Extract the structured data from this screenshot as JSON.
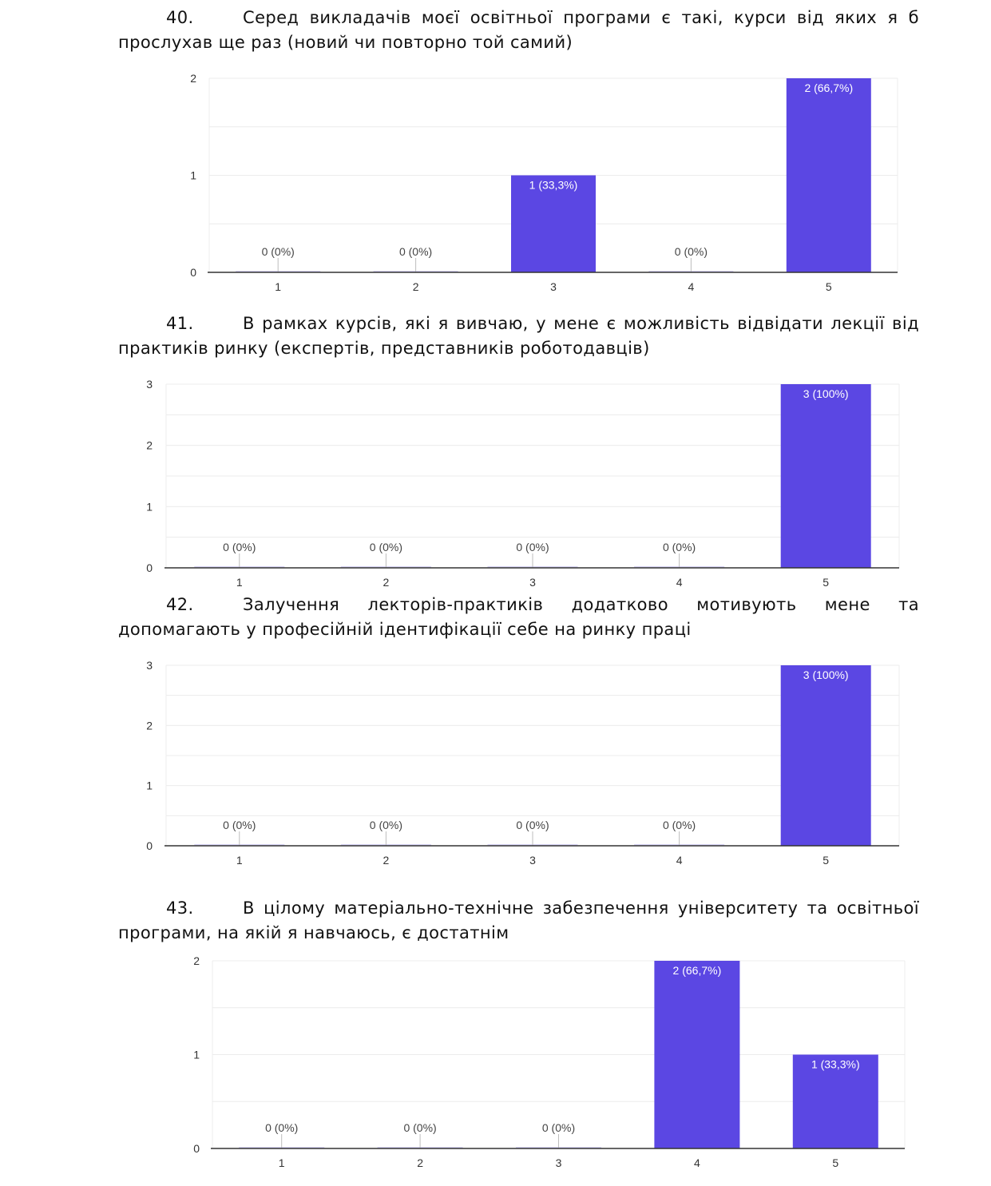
{
  "questions": [
    {
      "number": "40.",
      "text": "Серед викладачів моєї освітньої програми є такі, курси від яких я б прослухав ще раз (новий чи повторно той самий)"
    },
    {
      "number": "41.",
      "text": "В рамках курсів, які я вивчаю, у мене є можливість відвідати лекції від практиків ринку (експертів, представників роботодавців)"
    },
    {
      "number": "42.",
      "text": "Залучення лекторів-практиків додатково мотивують мене та допомагають у професійній ідентифікації себе на ринку праці"
    },
    {
      "number": "43.",
      "text": "В цілому матеріально-технічне забезпечення університету та освітньої програми, на якій я навчаюсь, є достатнім"
    }
  ],
  "colors": {
    "bar": "#5b47e3",
    "grid": "#ececec",
    "axis": "#333333"
  },
  "chart_data": [
    {
      "type": "bar",
      "categories": [
        "1",
        "2",
        "3",
        "4",
        "5"
      ],
      "values": [
        0,
        0,
        1,
        0,
        2
      ],
      "labels": [
        "0 (0%)",
        "0 (0%)",
        "1 (33,3%)",
        "0 (0%)",
        "2 (66,7%)"
      ],
      "yticks": [
        "0",
        "1",
        "2"
      ],
      "ylim": [
        0,
        2
      ]
    },
    {
      "type": "bar",
      "categories": [
        "1",
        "2",
        "3",
        "4",
        "5"
      ],
      "values": [
        0,
        0,
        0,
        0,
        3
      ],
      "labels": [
        "0 (0%)",
        "0 (0%)",
        "0 (0%)",
        "0 (0%)",
        "3 (100%)"
      ],
      "yticks": [
        "0",
        "1",
        "2",
        "3"
      ],
      "ylim": [
        0,
        3
      ]
    },
    {
      "type": "bar",
      "categories": [
        "1",
        "2",
        "3",
        "4",
        "5"
      ],
      "values": [
        0,
        0,
        0,
        0,
        3
      ],
      "labels": [
        "0 (0%)",
        "0 (0%)",
        "0 (0%)",
        "0 (0%)",
        "3 (100%)"
      ],
      "yticks": [
        "0",
        "1",
        "2",
        "3"
      ],
      "ylim": [
        0,
        3
      ]
    },
    {
      "type": "bar",
      "categories": [
        "1",
        "2",
        "3",
        "4",
        "5"
      ],
      "values": [
        0,
        0,
        0,
        2,
        1
      ],
      "labels": [
        "0 (0%)",
        "0 (0%)",
        "0 (0%)",
        "2 (66,7%)",
        "1 (33,3%)"
      ],
      "yticks": [
        "0",
        "1",
        "2"
      ],
      "ylim": [
        0,
        2
      ]
    }
  ]
}
